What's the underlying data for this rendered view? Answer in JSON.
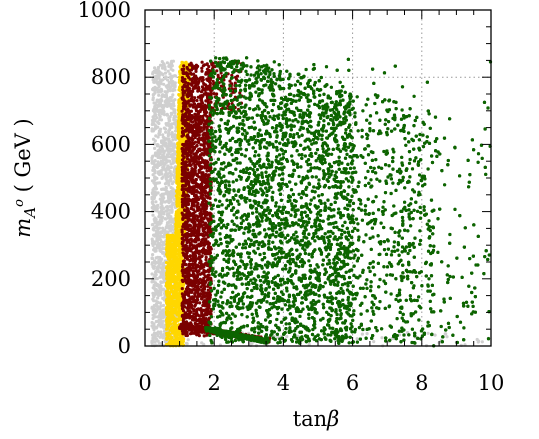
{
  "chart_data": {
    "type": "scatter",
    "title": "",
    "xlabel": "tanβ",
    "ylabel": "m_{A^o} ( GeV )",
    "xlim": [
      0,
      10
    ],
    "ylim": [
      0,
      1000
    ],
    "x_ticks": [
      "0",
      "2",
      "4",
      "6",
      "8",
      "10"
    ],
    "y_ticks": [
      "0",
      "200",
      "400",
      "600",
      "800",
      "1000"
    ],
    "grid": "dotted lines at x=2, 4, 6, 8 and y=800",
    "legend": "none",
    "series": [
      {
        "color": "#cfcfcf",
        "x_range": [
          0.2,
          10.0
        ],
        "y_range": [
          0,
          850
        ],
        "dense_x_range": [
          0.2,
          0.9
        ],
        "points_estimated": 1400
      },
      {
        "color": "#ffd700",
        "x_range": [
          0.6,
          1.3
        ],
        "y_range": [
          0,
          845
        ],
        "points_estimated": 2200
      },
      {
        "color": "#7a0000",
        "x_range": [
          1.0,
          3.7
        ],
        "y_range": [
          5,
          855
        ],
        "dense_x_range": [
          1.05,
          1.9
        ],
        "points_estimated": 2400
      },
      {
        "color": "#0d6400",
        "x_range": [
          1.8,
          10.0
        ],
        "y_range": [
          0,
          860
        ],
        "dense_x_range": [
          1.9,
          6.0
        ],
        "points_estimated": 9000
      }
    ]
  },
  "axis_text": {
    "x_label_pre": "tan",
    "x_label_beta": "β",
    "y_label_m": "m",
    "y_label_sub": "A",
    "y_label_sup": "o",
    "y_label_unit": " ( GeV )"
  }
}
